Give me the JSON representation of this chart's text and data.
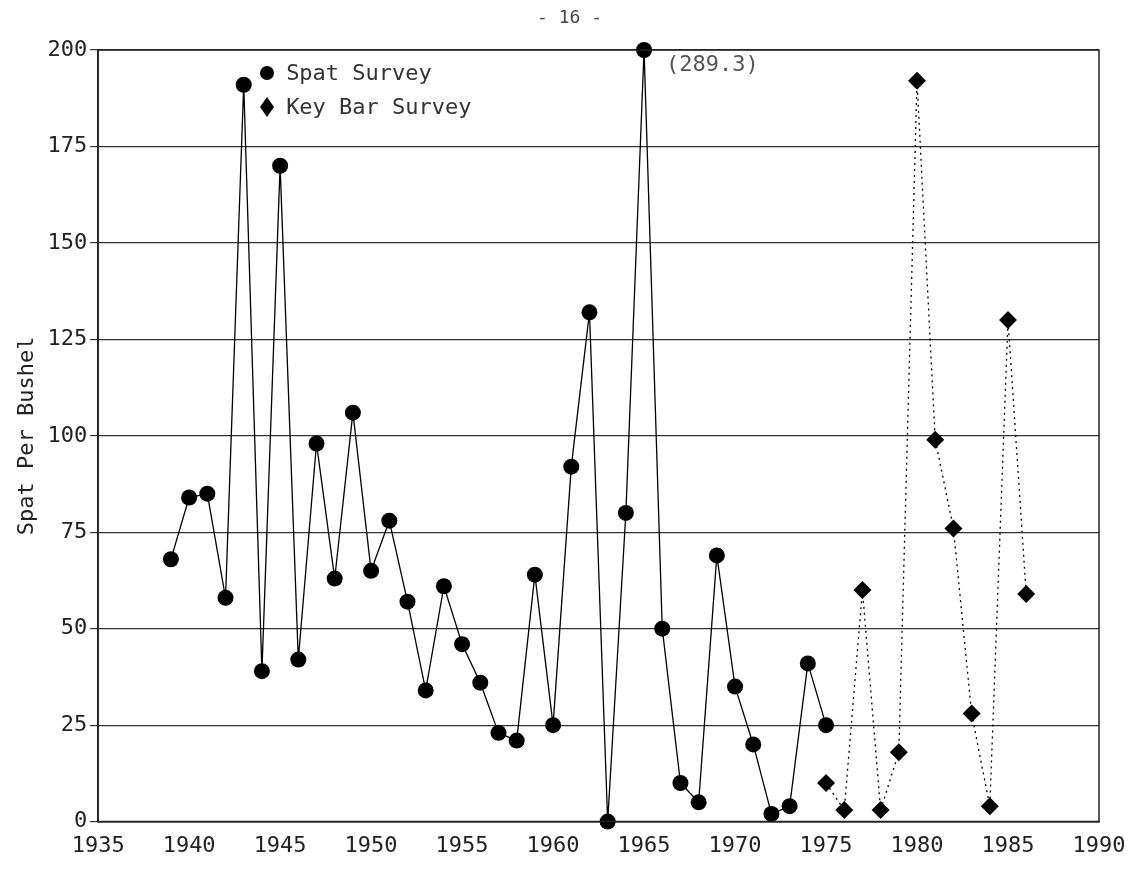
{
  "chart_data": {
    "type": "line",
    "ylabel": "Spat Per Bushel",
    "annotations": [
      "- 16 -",
      {
        "text": "(289.3)",
        "x": 1965,
        "y": 200
      }
    ],
    "xlim": [
      1935,
      1990
    ],
    "xticks": [
      1935,
      1940,
      1945,
      1950,
      1955,
      1960,
      1965,
      1970,
      1975,
      1980,
      1985,
      1990
    ],
    "ylim": [
      0,
      200
    ],
    "yticks": [
      0,
      25,
      50,
      75,
      100,
      125,
      150,
      175,
      200
    ],
    "grid": "y",
    "legend": "top left",
    "series": [
      {
        "name": "Spat Survey",
        "color": "#000000",
        "marker": "circle",
        "line_style": "solid",
        "x": [
          1939,
          1940,
          1941,
          1942,
          1943,
          1944,
          1945,
          1946,
          1947,
          1948,
          1949,
          1950,
          1951,
          1952,
          1953,
          1954,
          1955,
          1956,
          1957,
          1958,
          1959,
          1960,
          1961,
          1962,
          1963,
          1964,
          1965,
          1966,
          1967,
          1968,
          1969,
          1970,
          1971,
          1972,
          1973,
          1974,
          1975
        ],
        "values": [
          68,
          84,
          85,
          58,
          191,
          39,
          170,
          42,
          98,
          63,
          106,
          65,
          78,
          57,
          34,
          61,
          46,
          36,
          23,
          21,
          64,
          25,
          92,
          132,
          0,
          80,
          200,
          50,
          10,
          5,
          69,
          35,
          20,
          2,
          4,
          41,
          25
        ]
      },
      {
        "name": "Key Bar Survey",
        "color": "#000000",
        "marker": "diamond",
        "line_style": "dotted",
        "x": [
          1975,
          1976,
          1977,
          1978,
          1979,
          1980,
          1981,
          1982,
          1983,
          1984,
          1985,
          1986
        ],
        "values": [
          10,
          3,
          60,
          3,
          18,
          192,
          99,
          76,
          28,
          4,
          130,
          59
        ]
      }
    ]
  }
}
